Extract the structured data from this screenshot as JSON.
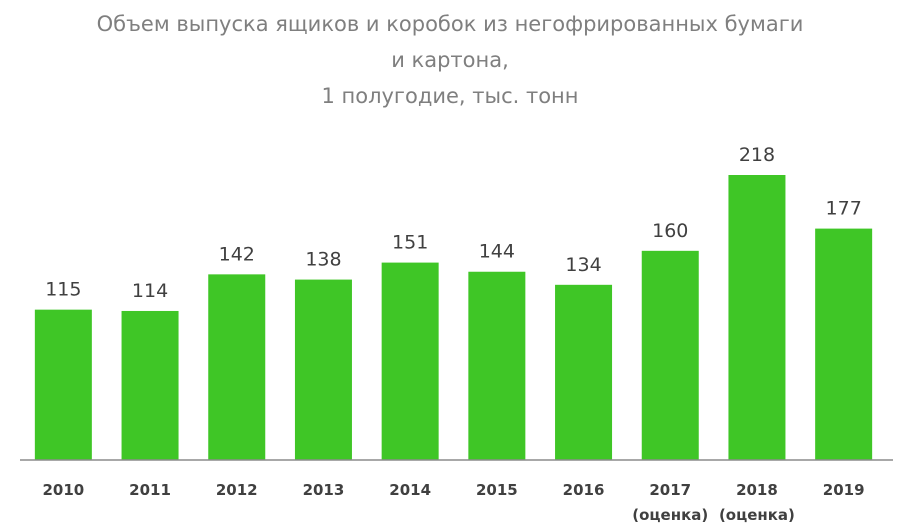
{
  "chart_data": {
    "type": "bar",
    "title": "Объем выпуска ящиков и коробок из негофрированных бумаги\nи картона,\n1 полугодие, тыс. тонн",
    "categories": [
      "2010",
      "2011",
      "2012",
      "2013",
      "2014",
      "2015",
      "2016",
      "2017\n(оценка)",
      "2018\n(оценка)",
      "2019"
    ],
    "values": [
      115,
      114,
      142,
      138,
      151,
      144,
      134,
      160,
      218,
      177
    ],
    "color": "#3fc626"
  }
}
